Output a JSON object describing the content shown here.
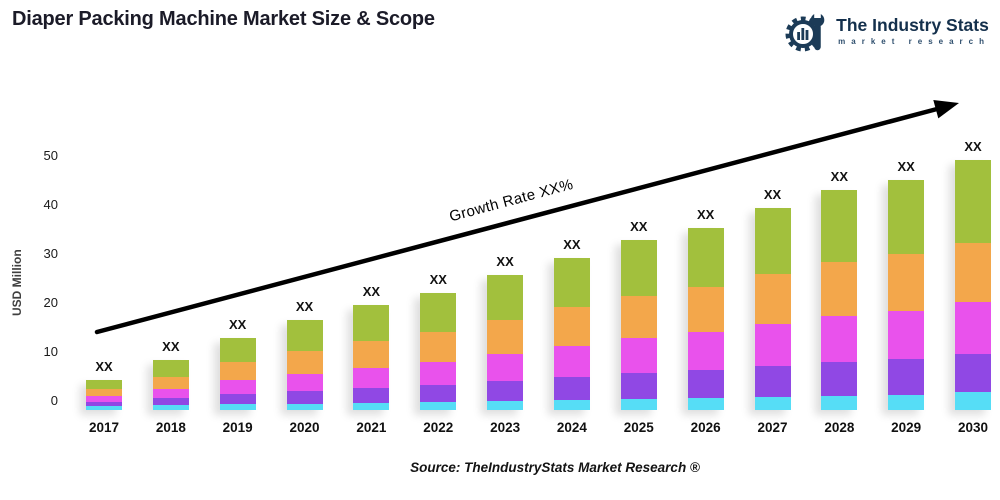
{
  "page": {
    "title": "Diaper Packing Machine Market Size & Scope",
    "source_note": "Source: TheIndustryStats Market Research ®"
  },
  "logo": {
    "name": "The Industry Stats",
    "tagline": "market research",
    "color": "#1C3B57"
  },
  "annotation": {
    "growth_label": "Growth Rate XX%"
  },
  "chart_data": {
    "type": "bar",
    "stacked": true,
    "title": "Diaper Packing Machine Market Size & Scope",
    "xlabel": "",
    "ylabel": "USD Million",
    "ylim": [
      0,
      55
    ],
    "yticks": [
      0,
      10,
      20,
      30,
      40,
      50
    ],
    "grid": false,
    "legend": "none",
    "bar_value_label": "XX",
    "categories": [
      "2017",
      "2018",
      "2019",
      "2020",
      "2021",
      "2022",
      "2023",
      "2024",
      "2025",
      "2026",
      "2027",
      "2028",
      "2029",
      "2030"
    ],
    "series": [
      {
        "name": "segment-cyan",
        "color": "#56DDF6",
        "values": [
          0.9,
          1.0,
          1.2,
          1.3,
          1.4,
          1.6,
          1.8,
          2.0,
          2.2,
          2.4,
          2.7,
          2.9,
          3.1,
          3.6
        ]
      },
      {
        "name": "segment-purple",
        "color": "#9048E4",
        "values": [
          0.8,
          1.4,
          2.0,
          2.5,
          3.0,
          3.4,
          4.0,
          4.6,
          5.2,
          5.6,
          6.2,
          6.8,
          7.1,
          7.7
        ]
      },
      {
        "name": "segment-magenta",
        "color": "#E952EC",
        "values": [
          1.1,
          1.8,
          2.8,
          3.5,
          4.1,
          4.7,
          5.5,
          6.3,
          7.0,
          7.6,
          8.4,
          9.1,
          9.6,
          10.3
        ]
      },
      {
        "name": "segment-orange",
        "color": "#F3A74B",
        "values": [
          1.4,
          2.4,
          3.7,
          4.5,
          5.3,
          6.0,
          6.8,
          7.7,
          8.5,
          9.1,
          10.0,
          10.9,
          11.4,
          11.9
        ]
      },
      {
        "name": "segment-green",
        "color": "#A2C03D",
        "values": [
          1.8,
          3.4,
          4.8,
          6.2,
          7.2,
          7.8,
          8.9,
          9.9,
          11.1,
          11.8,
          13.2,
          14.3,
          14.8,
          16.5
        ]
      }
    ],
    "totals": [
      6.0,
      10.0,
      14.5,
      18.0,
      21.0,
      23.5,
      27.0,
      30.5,
      34.0,
      36.5,
      40.5,
      44.0,
      46.0,
      50.0
    ]
  }
}
